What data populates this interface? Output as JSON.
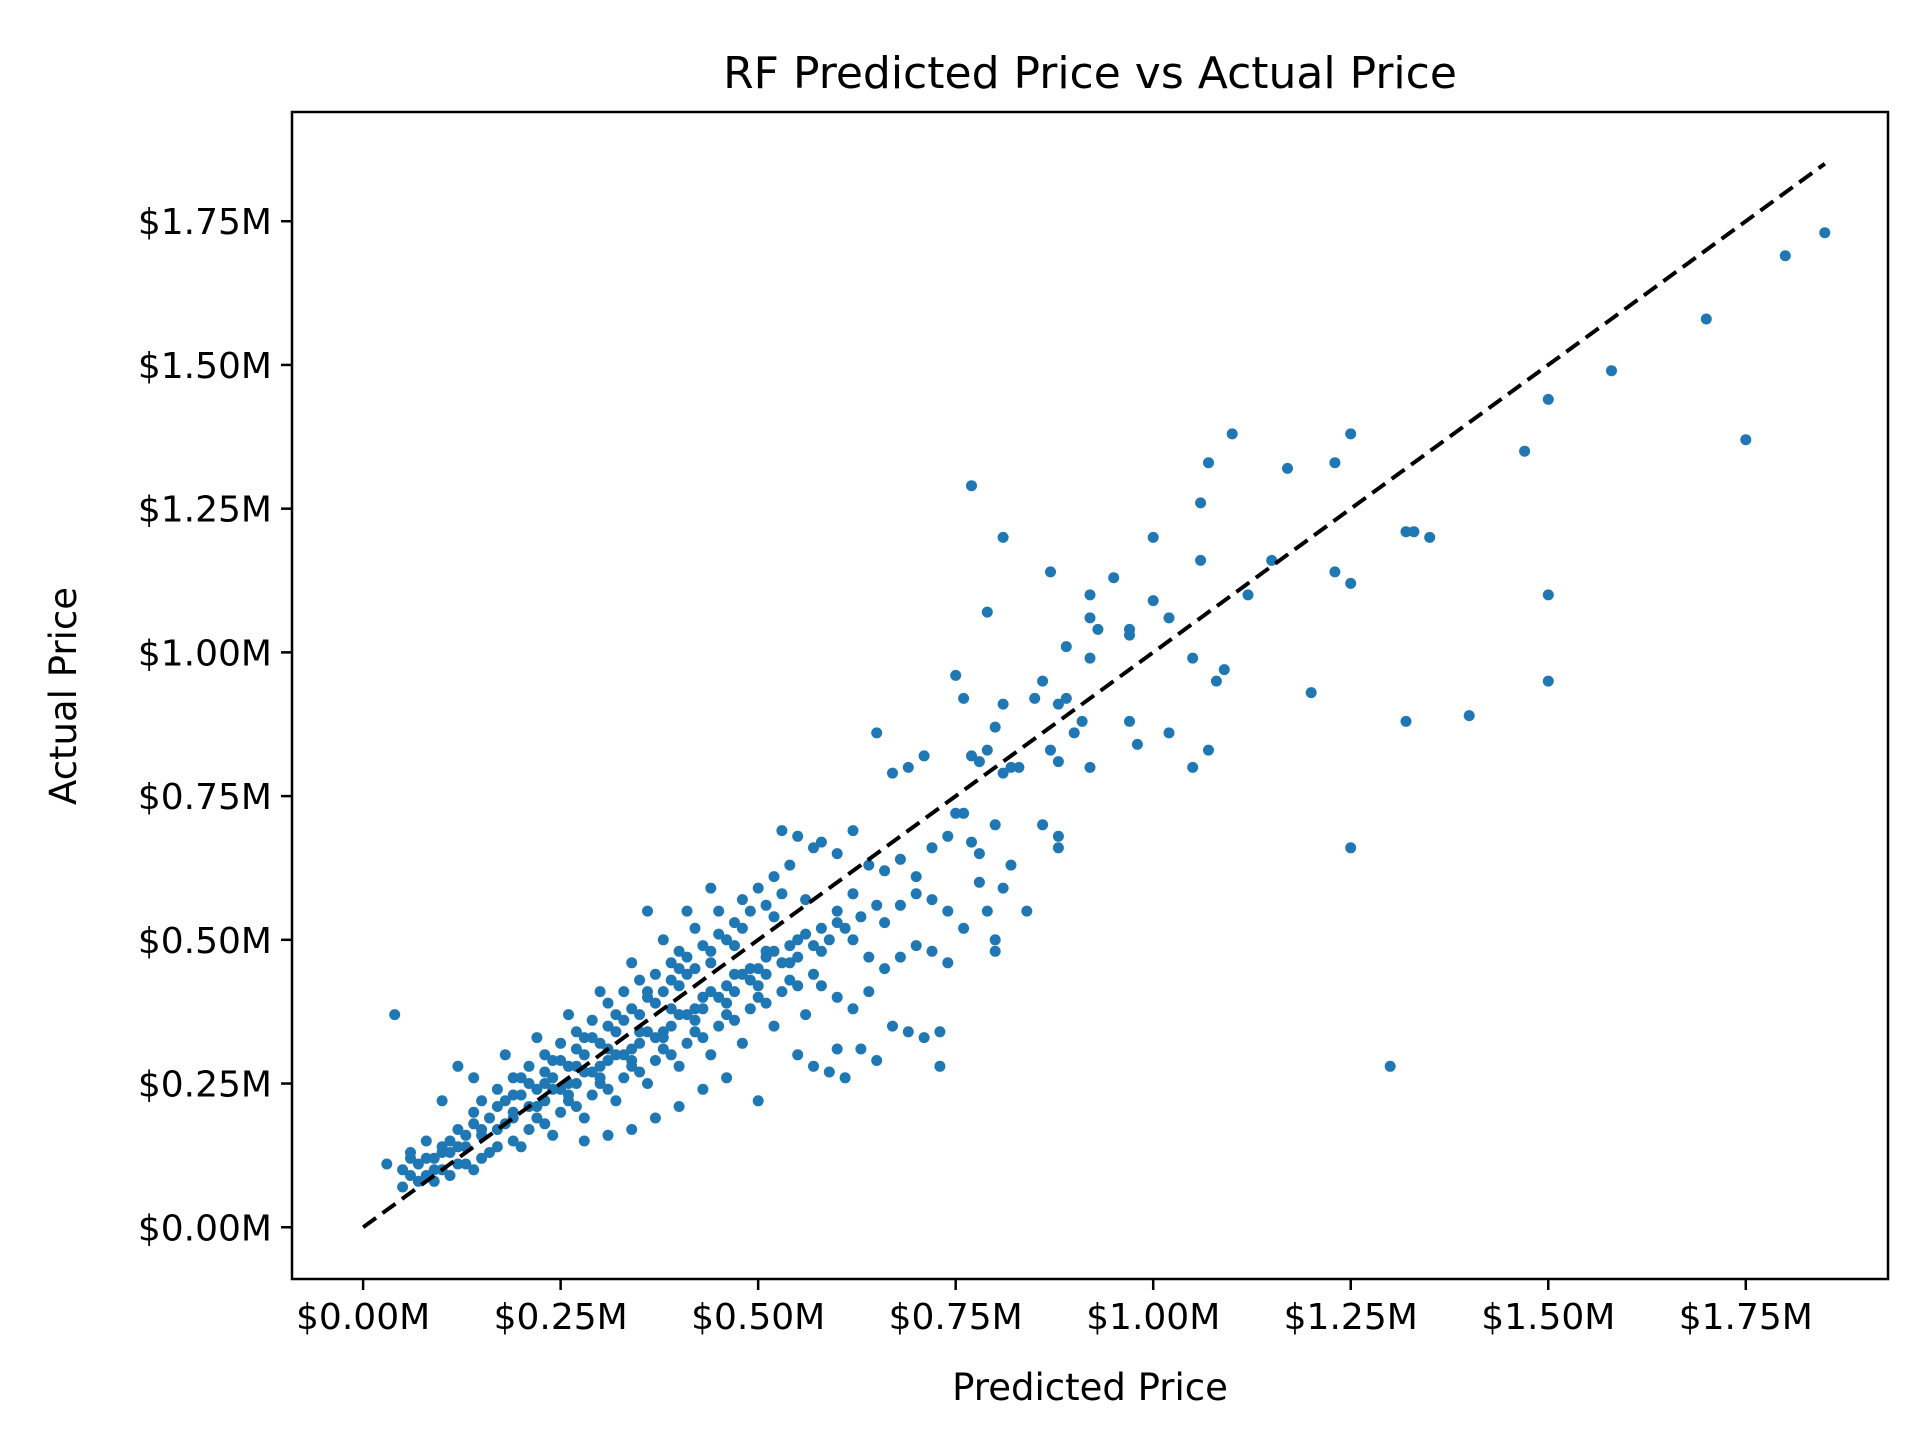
{
  "chart_data": {
    "type": "scatter",
    "title": "RF Predicted Price vs Actual Price",
    "xlabel": "Predicted Price",
    "ylabel": "Actual Price",
    "xlim": [
      -0.09,
      1.93
    ],
    "ylim": [
      -0.09,
      1.94
    ],
    "x_ticks": [
      {
        "value": 0.0,
        "label": "$0.00M"
      },
      {
        "value": 0.25,
        "label": "$0.25M"
      },
      {
        "value": 0.5,
        "label": "$0.50M"
      },
      {
        "value": 0.75,
        "label": "$0.75M"
      },
      {
        "value": 1.0,
        "label": "$1.00M"
      },
      {
        "value": 1.25,
        "label": "$1.25M"
      },
      {
        "value": 1.5,
        "label": "$1.50M"
      },
      {
        "value": 1.75,
        "label": "$1.75M"
      }
    ],
    "y_ticks": [
      {
        "value": 0.0,
        "label": "$0.00M"
      },
      {
        "value": 0.25,
        "label": "$0.25M"
      },
      {
        "value": 0.5,
        "label": "$0.50M"
      },
      {
        "value": 0.75,
        "label": "$0.75M"
      },
      {
        "value": 1.0,
        "label": "$1.00M"
      },
      {
        "value": 1.25,
        "label": "$1.25M"
      },
      {
        "value": 1.5,
        "label": "$1.50M"
      },
      {
        "value": 1.75,
        "label": "$1.75M"
      }
    ],
    "grid": false,
    "point_color": "#1f77b4",
    "reference_line": {
      "x": [
        0.0,
        1.85
      ],
      "y": [
        0.0,
        1.85
      ],
      "style": "dashed",
      "color": "#000000"
    },
    "points": [
      [
        0.04,
        0.37
      ],
      [
        0.03,
        0.11
      ],
      [
        0.05,
        0.07
      ],
      [
        0.06,
        0.09
      ],
      [
        0.07,
        0.11
      ],
      [
        0.08,
        0.12
      ],
      [
        0.09,
        0.1
      ],
      [
        0.1,
        0.13
      ],
      [
        0.11,
        0.15
      ],
      [
        0.12,
        0.14
      ],
      [
        0.13,
        0.16
      ],
      [
        0.14,
        0.18
      ],
      [
        0.15,
        0.17
      ],
      [
        0.16,
        0.19
      ],
      [
        0.17,
        0.21
      ],
      [
        0.18,
        0.22
      ],
      [
        0.19,
        0.2
      ],
      [
        0.2,
        0.23
      ],
      [
        0.21,
        0.25
      ],
      [
        0.22,
        0.24
      ],
      [
        0.23,
        0.27
      ],
      [
        0.24,
        0.26
      ],
      [
        0.25,
        0.29
      ],
      [
        0.26,
        0.28
      ],
      [
        0.27,
        0.31
      ],
      [
        0.28,
        0.3
      ],
      [
        0.29,
        0.33
      ],
      [
        0.3,
        0.32
      ],
      [
        0.31,
        0.35
      ],
      [
        0.32,
        0.34
      ],
      [
        0.33,
        0.36
      ],
      [
        0.34,
        0.38
      ],
      [
        0.35,
        0.37
      ],
      [
        0.36,
        0.4
      ],
      [
        0.37,
        0.39
      ],
      [
        0.38,
        0.41
      ],
      [
        0.39,
        0.43
      ],
      [
        0.4,
        0.42
      ],
      [
        0.41,
        0.44
      ],
      [
        0.42,
        0.45
      ],
      [
        0.12,
        0.28
      ],
      [
        0.14,
        0.26
      ],
      [
        0.1,
        0.22
      ],
      [
        0.08,
        0.15
      ],
      [
        0.06,
        0.13
      ],
      [
        0.09,
        0.08
      ],
      [
        0.11,
        0.09
      ],
      [
        0.13,
        0.11
      ],
      [
        0.15,
        0.12
      ],
      [
        0.17,
        0.14
      ],
      [
        0.19,
        0.15
      ],
      [
        0.21,
        0.17
      ],
      [
        0.23,
        0.18
      ],
      [
        0.25,
        0.2
      ],
      [
        0.27,
        0.21
      ],
      [
        0.29,
        0.23
      ],
      [
        0.31,
        0.24
      ],
      [
        0.33,
        0.26
      ],
      [
        0.35,
        0.27
      ],
      [
        0.37,
        0.29
      ],
      [
        0.39,
        0.3
      ],
      [
        0.41,
        0.32
      ],
      [
        0.43,
        0.33
      ],
      [
        0.45,
        0.35
      ],
      [
        0.47,
        0.36
      ],
      [
        0.49,
        0.38
      ],
      [
        0.51,
        0.39
      ],
      [
        0.53,
        0.41
      ],
      [
        0.55,
        0.42
      ],
      [
        0.57,
        0.44
      ],
      [
        0.2,
        0.14
      ],
      [
        0.24,
        0.16
      ],
      [
        0.28,
        0.19
      ],
      [
        0.32,
        0.22
      ],
      [
        0.36,
        0.25
      ],
      [
        0.4,
        0.28
      ],
      [
        0.44,
        0.3
      ],
      [
        0.48,
        0.32
      ],
      [
        0.52,
        0.35
      ],
      [
        0.56,
        0.37
      ],
      [
        0.3,
        0.41
      ],
      [
        0.34,
        0.46
      ],
      [
        0.38,
        0.5
      ],
      [
        0.42,
        0.52
      ],
      [
        0.45,
        0.55
      ],
      [
        0.48,
        0.57
      ],
      [
        0.5,
        0.59
      ],
      [
        0.52,
        0.61
      ],
      [
        0.54,
        0.63
      ],
      [
        0.57,
        0.66
      ],
      [
        0.26,
        0.37
      ],
      [
        0.22,
        0.33
      ],
      [
        0.18,
        0.3
      ],
      [
        0.44,
        0.59
      ],
      [
        0.46,
        0.5
      ],
      [
        0.41,
        0.55
      ],
      [
        0.53,
        0.69
      ],
      [
        0.55,
        0.68
      ],
      [
        0.58,
        0.67
      ],
      [
        0.6,
        0.65
      ],
      [
        0.62,
        0.69
      ],
      [
        0.64,
        0.63
      ],
      [
        0.66,
        0.62
      ],
      [
        0.68,
        0.64
      ],
      [
        0.7,
        0.61
      ],
      [
        0.72,
        0.66
      ],
      [
        0.74,
        0.68
      ],
      [
        0.76,
        0.72
      ],
      [
        0.78,
        0.65
      ],
      [
        0.8,
        0.7
      ],
      [
        0.6,
        0.55
      ],
      [
        0.62,
        0.5
      ],
      [
        0.64,
        0.47
      ],
      [
        0.66,
        0.53
      ],
      [
        0.68,
        0.56
      ],
      [
        0.7,
        0.58
      ],
      [
        0.72,
        0.57
      ],
      [
        0.74,
        0.55
      ],
      [
        0.76,
        0.52
      ],
      [
        0.78,
        0.6
      ],
      [
        0.55,
        0.3
      ],
      [
        0.57,
        0.28
      ],
      [
        0.59,
        0.27
      ],
      [
        0.61,
        0.26
      ],
      [
        0.63,
        0.31
      ],
      [
        0.65,
        0.29
      ],
      [
        0.67,
        0.35
      ],
      [
        0.69,
        0.34
      ],
      [
        0.71,
        0.33
      ],
      [
        0.73,
        0.34
      ],
      [
        0.73,
        0.28
      ],
      [
        0.6,
        0.31
      ],
      [
        0.5,
        0.22
      ],
      [
        0.46,
        0.26
      ],
      [
        0.43,
        0.24
      ],
      [
        0.4,
        0.21
      ],
      [
        0.37,
        0.19
      ],
      [
        0.34,
        0.17
      ],
      [
        0.31,
        0.16
      ],
      [
        0.28,
        0.15
      ],
      [
        0.58,
        0.42
      ],
      [
        0.6,
        0.4
      ],
      [
        0.62,
        0.38
      ],
      [
        0.64,
        0.41
      ],
      [
        0.66,
        0.45
      ],
      [
        0.68,
        0.47
      ],
      [
        0.7,
        0.49
      ],
      [
        0.72,
        0.48
      ],
      [
        0.74,
        0.46
      ],
      [
        0.8,
        0.48
      ],
      [
        0.81,
        0.59
      ],
      [
        0.82,
        0.63
      ],
      [
        0.84,
        0.55
      ],
      [
        0.86,
        0.7
      ],
      [
        0.88,
        0.68
      ],
      [
        0.88,
        0.66
      ],
      [
        0.8,
        0.5
      ],
      [
        0.77,
        0.67
      ],
      [
        0.75,
        0.72
      ],
      [
        0.79,
        0.55
      ],
      [
        0.65,
        0.86
      ],
      [
        0.67,
        0.79
      ],
      [
        0.69,
        0.8
      ],
      [
        0.71,
        0.82
      ],
      [
        0.75,
        0.96
      ],
      [
        0.76,
        0.92
      ],
      [
        0.77,
        0.82
      ],
      [
        0.78,
        0.81
      ],
      [
        0.79,
        0.83
      ],
      [
        0.8,
        0.87
      ],
      [
        0.81,
        0.79
      ],
      [
        0.81,
        0.91
      ],
      [
        0.82,
        0.8
      ],
      [
        0.83,
        0.8
      ],
      [
        0.85,
        0.92
      ],
      [
        0.86,
        0.95
      ],
      [
        0.87,
        0.83
      ],
      [
        0.88,
        0.81
      ],
      [
        0.88,
        0.91
      ],
      [
        0.89,
        0.92
      ],
      [
        0.9,
        0.86
      ],
      [
        0.91,
        0.88
      ],
      [
        0.92,
        0.8
      ],
      [
        0.92,
        1.06
      ],
      [
        0.93,
        1.04
      ],
      [
        0.92,
        1.1
      ],
      [
        0.95,
        1.13
      ],
      [
        0.97,
        1.03
      ],
      [
        0.97,
        1.04
      ],
      [
        0.97,
        0.88
      ],
      [
        0.98,
        0.84
      ],
      [
        0.87,
        1.14
      ],
      [
        0.89,
        1.01
      ],
      [
        0.92,
        0.99
      ],
      [
        0.79,
        1.07
      ],
      [
        0.81,
        1.2
      ],
      [
        0.77,
        1.29
      ],
      [
        1.0,
        1.09
      ],
      [
        1.0,
        1.2
      ],
      [
        1.02,
        1.06
      ],
      [
        1.02,
        0.86
      ],
      [
        1.05,
        0.99
      ],
      [
        1.05,
        0.8
      ],
      [
        1.06,
        1.16
      ],
      [
        1.07,
        0.83
      ],
      [
        1.08,
        0.95
      ],
      [
        1.09,
        0.97
      ],
      [
        1.06,
        1.26
      ],
      [
        1.07,
        1.33
      ],
      [
        1.1,
        1.38
      ],
      [
        1.12,
        1.1
      ],
      [
        1.17,
        1.32
      ],
      [
        1.15,
        1.16
      ],
      [
        1.2,
        0.93
      ],
      [
        1.23,
        1.14
      ],
      [
        1.23,
        1.33
      ],
      [
        1.25,
        1.12
      ],
      [
        1.25,
        1.38
      ],
      [
        1.25,
        0.66
      ],
      [
        1.3,
        0.28
      ],
      [
        1.32,
        0.88
      ],
      [
        1.32,
        1.21
      ],
      [
        1.33,
        1.21
      ],
      [
        1.35,
        1.2
      ],
      [
        1.4,
        0.89
      ],
      [
        1.47,
        1.35
      ],
      [
        1.5,
        1.44
      ],
      [
        1.5,
        1.1
      ],
      [
        1.5,
        0.95
      ],
      [
        1.58,
        1.49
      ],
      [
        1.7,
        1.58
      ],
      [
        1.75,
        1.37
      ],
      [
        1.8,
        1.69
      ],
      [
        1.85,
        1.73
      ],
      [
        0.36,
        0.55
      ],
      [
        0.4,
        0.48
      ],
      [
        0.44,
        0.46
      ],
      [
        0.47,
        0.49
      ],
      [
        0.49,
        0.45
      ],
      [
        0.51,
        0.47
      ],
      [
        0.15,
        0.22
      ],
      [
        0.17,
        0.24
      ],
      [
        0.19,
        0.26
      ],
      [
        0.21,
        0.28
      ],
      [
        0.23,
        0.3
      ],
      [
        0.25,
        0.32
      ],
      [
        0.27,
        0.34
      ],
      [
        0.29,
        0.36
      ],
      [
        0.31,
        0.39
      ],
      [
        0.33,
        0.41
      ],
      [
        0.35,
        0.43
      ],
      [
        0.37,
        0.44
      ],
      [
        0.39,
        0.46
      ],
      [
        0.41,
        0.47
      ],
      [
        0.43,
        0.49
      ],
      [
        0.45,
        0.51
      ],
      [
        0.47,
        0.53
      ],
      [
        0.49,
        0.55
      ],
      [
        0.51,
        0.56
      ],
      [
        0.53,
        0.58
      ],
      [
        0.07,
        0.08
      ],
      [
        0.09,
        0.12
      ],
      [
        0.11,
        0.13
      ],
      [
        0.13,
        0.14
      ],
      [
        0.15,
        0.16
      ],
      [
        0.17,
        0.17
      ],
      [
        0.19,
        0.19
      ],
      [
        0.21,
        0.21
      ],
      [
        0.23,
        0.22
      ],
      [
        0.25,
        0.24
      ],
      [
        0.27,
        0.25
      ],
      [
        0.29,
        0.27
      ],
      [
        0.31,
        0.29
      ],
      [
        0.33,
        0.3
      ],
      [
        0.35,
        0.32
      ],
      [
        0.37,
        0.33
      ],
      [
        0.39,
        0.35
      ],
      [
        0.41,
        0.37
      ],
      [
        0.43,
        0.38
      ],
      [
        0.45,
        0.4
      ],
      [
        0.47,
        0.41
      ],
      [
        0.49,
        0.43
      ],
      [
        0.51,
        0.44
      ],
      [
        0.53,
        0.46
      ],
      [
        0.55,
        0.47
      ],
      [
        0.57,
        0.49
      ],
      [
        0.59,
        0.5
      ],
      [
        0.61,
        0.52
      ],
      [
        0.63,
        0.54
      ],
      [
        0.65,
        0.56
      ],
      [
        0.18,
        0.18
      ],
      [
        0.22,
        0.19
      ],
      [
        0.26,
        0.22
      ],
      [
        0.3,
        0.25
      ],
      [
        0.34,
        0.28
      ],
      [
        0.38,
        0.31
      ],
      [
        0.42,
        0.34
      ],
      [
        0.46,
        0.37
      ],
      [
        0.5,
        0.4
      ],
      [
        0.54,
        0.43
      ],
      [
        0.2,
        0.26
      ],
      [
        0.24,
        0.29
      ],
      [
        0.28,
        0.33
      ],
      [
        0.32,
        0.37
      ],
      [
        0.36,
        0.41
      ],
      [
        0.4,
        0.45
      ],
      [
        0.44,
        0.48
      ],
      [
        0.48,
        0.52
      ],
      [
        0.52,
        0.54
      ],
      [
        0.56,
        0.57
      ],
      [
        0.16,
        0.13
      ],
      [
        0.14,
        0.1
      ],
      [
        0.12,
        0.11
      ],
      [
        0.1,
        0.1
      ],
      [
        0.08,
        0.09
      ],
      [
        0.05,
        0.1
      ],
      [
        0.06,
        0.12
      ],
      [
        0.1,
        0.14
      ],
      [
        0.12,
        0.17
      ],
      [
        0.14,
        0.2
      ],
      [
        0.26,
        0.25
      ],
      [
        0.3,
        0.28
      ],
      [
        0.34,
        0.31
      ],
      [
        0.38,
        0.34
      ],
      [
        0.42,
        0.38
      ],
      [
        0.46,
        0.42
      ],
      [
        0.5,
        0.45
      ],
      [
        0.54,
        0.49
      ],
      [
        0.58,
        0.52
      ],
      [
        0.62,
        0.58
      ],
      [
        0.22,
        0.21
      ],
      [
        0.26,
        0.23
      ],
      [
        0.3,
        0.26
      ],
      [
        0.34,
        0.29
      ],
      [
        0.38,
        0.33
      ],
      [
        0.42,
        0.36
      ],
      [
        0.46,
        0.39
      ],
      [
        0.5,
        0.42
      ],
      [
        0.54,
        0.46
      ],
      [
        0.58,
        0.48
      ],
      [
        0.24,
        0.24
      ],
      [
        0.28,
        0.27
      ],
      [
        0.32,
        0.3
      ],
      [
        0.36,
        0.34
      ],
      [
        0.4,
        0.37
      ],
      [
        0.44,
        0.41
      ],
      [
        0.48,
        0.44
      ],
      [
        0.52,
        0.48
      ],
      [
        0.56,
        0.51
      ],
      [
        0.6,
        0.53
      ],
      [
        0.19,
        0.23
      ],
      [
        0.23,
        0.25
      ],
      [
        0.27,
        0.28
      ],
      [
        0.31,
        0.31
      ],
      [
        0.35,
        0.34
      ],
      [
        0.39,
        0.38
      ],
      [
        0.43,
        0.4
      ],
      [
        0.47,
        0.44
      ],
      [
        0.51,
        0.48
      ],
      [
        0.55,
        0.5
      ]
    ]
  }
}
